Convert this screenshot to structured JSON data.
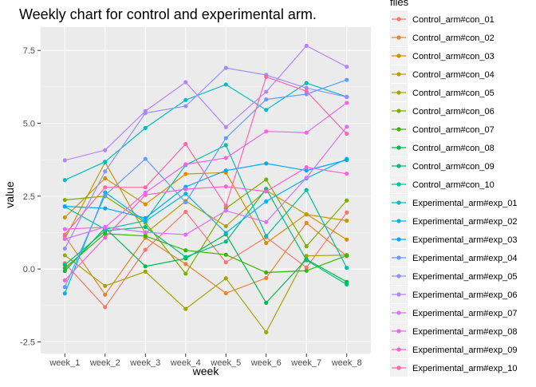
{
  "chart_data": {
    "type": "line",
    "title": "Weekly chart for control and experimental arm.",
    "xlabel": "week",
    "ylabel": "value",
    "legend_title": "files",
    "legend_position": "right",
    "grid": true,
    "ylim": [
      -2.9,
      8.3
    ],
    "yticks": [
      -2.5,
      0.0,
      2.5,
      5.0,
      7.5
    ],
    "ytick_labels": [
      "-2.5",
      "0.0",
      "2.5",
      "5.0",
      "7.5"
    ],
    "categories": [
      "week_1",
      "week_2",
      "week_3",
      "week_4",
      "week_5",
      "week_6",
      "week_7",
      "week_8"
    ],
    "series": [
      {
        "name": "Control_arm#con_01",
        "color": "#F8766D",
        "values": [
          0.2,
          -1.31,
          0.66,
          1.96,
          0.23,
          1.09,
          0.05,
          1.94
        ]
      },
      {
        "name": "Control_arm#con_02",
        "color": "#EA8331",
        "values": [
          1.13,
          -0.88,
          1.07,
          0.17,
          -0.83,
          -0.31,
          1.58,
          0.44
        ]
      },
      {
        "name": "Control_arm#con_03",
        "color": "#D89000",
        "values": [
          1.77,
          3.11,
          2.22,
          3.26,
          3.31,
          0.89,
          1.88,
          1.01
        ]
      },
      {
        "name": "Control_arm#con_04",
        "color": "#C09B00",
        "values": [
          1.04,
          3.66,
          1.22,
          2.33,
          1.47,
          2.7,
          1.87,
          1.66
        ]
      },
      {
        "name": "Control_arm#con_05",
        "color": "#A3A500",
        "values": [
          0.47,
          -0.58,
          -0.09,
          -1.37,
          -0.32,
          -2.17,
          0.45,
          0.48
        ]
      },
      {
        "name": "Control_arm#con_06",
        "color": "#7CAE00",
        "values": [
          2.37,
          2.5,
          1.59,
          -0.16,
          2.08,
          3.07,
          0.78,
          2.35
        ]
      },
      {
        "name": "Control_arm#con_07",
        "color": "#39B600",
        "values": [
          0.03,
          1.21,
          1.13,
          0.64,
          0.49,
          -0.12,
          -0.06,
          0.46
        ]
      },
      {
        "name": "Control_arm#con_08",
        "color": "#00BB4E",
        "values": [
          -0.07,
          1.41,
          0.09,
          0.36,
          1.19,
          -1.16,
          0.33,
          -0.44
        ]
      },
      {
        "name": "Control_arm#con_09",
        "color": "#00BF7D",
        "values": [
          0.14,
          1.31,
          1.44,
          0.41,
          0.94,
          2.75,
          0.3,
          -0.53
        ]
      },
      {
        "name": "Control_arm#con_10",
        "color": "#00C1A3",
        "values": [
          2.14,
          1.36,
          1.66,
          3.57,
          4.25,
          1.13,
          2.71,
          0.04
        ]
      },
      {
        "name": "Experimental_arm#exp_01",
        "color": "#00BFC4",
        "values": [
          3.05,
          3.68,
          4.84,
          5.8,
          6.33,
          5.46,
          6.38,
          5.91
        ]
      },
      {
        "name": "Experimental_arm#exp_02",
        "color": "#00B8E7",
        "values": [
          -0.84,
          2.63,
          1.64,
          2.58,
          1.24,
          2.32,
          3.11,
          3.78
        ]
      },
      {
        "name": "Experimental_arm#exp_03",
        "color": "#00A9FF",
        "values": [
          2.15,
          2.08,
          1.75,
          2.82,
          3.38,
          3.62,
          3.38,
          3.74
        ]
      },
      {
        "name": "Experimental_arm#exp_04",
        "color": "#619CFF",
        "values": [
          -0.62,
          2.53,
          3.78,
          2.29,
          4.49,
          5.82,
          6.0,
          6.49
        ]
      },
      {
        "name": "Experimental_arm#exp_05",
        "color": "#9590FF",
        "values": [
          0.7,
          3.35,
          5.35,
          5.59,
          6.9,
          6.66,
          6.21,
          5.9
        ]
      },
      {
        "name": "Experimental_arm#exp_06",
        "color": "#B983FF",
        "values": [
          3.73,
          4.08,
          5.42,
          6.41,
          4.87,
          6.08,
          7.66,
          6.94
        ]
      },
      {
        "name": "Experimental_arm#exp_07",
        "color": "#DB72FB",
        "values": [
          1.03,
          1.44,
          1.26,
          1.18,
          2.0,
          1.61,
          3.13,
          4.88
        ]
      },
      {
        "name": "Experimental_arm#exp_08",
        "color": "#F066EA",
        "values": [
          1.37,
          1.43,
          2.62,
          3.59,
          3.81,
          4.72,
          4.68,
          5.7
        ]
      },
      {
        "name": "Experimental_arm#exp_09",
        "color": "#FC61D5",
        "values": [
          -0.39,
          1.08,
          2.54,
          2.74,
          2.83,
          2.66,
          3.49,
          3.27
        ]
      },
      {
        "name": "Experimental_arm#exp_10",
        "color": "#FF65AC",
        "values": [
          1.18,
          2.8,
          2.8,
          4.29,
          2.17,
          6.59,
          6.1,
          4.64
        ]
      }
    ]
  }
}
